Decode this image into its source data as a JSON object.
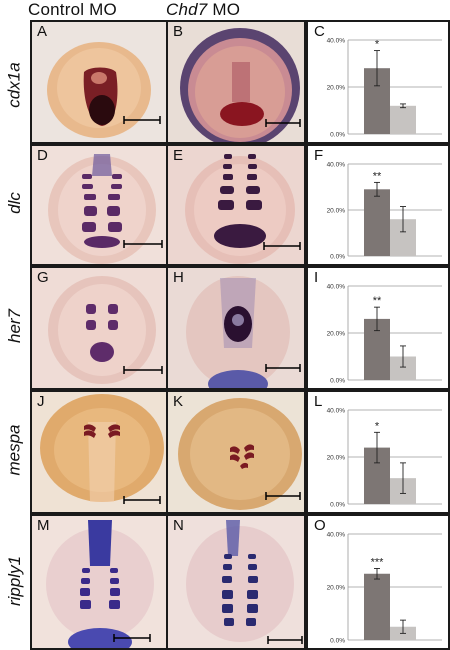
{
  "header": {
    "control_label": "Control MO",
    "chd7_label": "Chd7",
    "chd7_suffix": " MO"
  },
  "rows": [
    {
      "gene": "cdx1a",
      "panels": [
        "A",
        "B",
        "C"
      ]
    },
    {
      "gene": "dlc",
      "panels": [
        "D",
        "E",
        "F"
      ]
    },
    {
      "gene": "her7",
      "panels": [
        "G",
        "H",
        "I"
      ]
    },
    {
      "gene": "mespa",
      "panels": [
        "J",
        "K",
        "L"
      ]
    },
    {
      "gene": "ripply1",
      "panels": [
        "M",
        "N",
        "O"
      ]
    }
  ],
  "colors": {
    "dark_bar": "#7d7674",
    "light_bar": "#c6c3c1",
    "axis": "#9a9a9a",
    "border": "#1a1a1a"
  },
  "chart_data": [
    {
      "type": "bar",
      "panel": "C",
      "categories": [
        "",
        ""
      ],
      "values": [
        28,
        12
      ],
      "errors": [
        7.5,
        0.8
      ],
      "ylim": [
        0,
        40
      ],
      "yticks": [
        "0.0%",
        "20.0%",
        "40.0%"
      ],
      "significance": "*"
    },
    {
      "type": "bar",
      "panel": "F",
      "categories": [
        "",
        ""
      ],
      "values": [
        29,
        16
      ],
      "errors": [
        3,
        5.5
      ],
      "ylim": [
        0,
        40
      ],
      "yticks": [
        "0.0%",
        "20.0%",
        "40.0%"
      ],
      "significance": "**"
    },
    {
      "type": "bar",
      "panel": "I",
      "categories": [
        "",
        ""
      ],
      "values": [
        26,
        10
      ],
      "errors": [
        5,
        4.5
      ],
      "ylim": [
        0,
        40
      ],
      "yticks": [
        "0.0%",
        "20.0%",
        "40.0%"
      ],
      "significance": "**"
    },
    {
      "type": "bar",
      "panel": "L",
      "categories": [
        "",
        ""
      ],
      "values": [
        24,
        11
      ],
      "errors": [
        6.5,
        6.5
      ],
      "ylim": [
        0,
        40
      ],
      "yticks": [
        "0.0%",
        "20.0%",
        "40.0%"
      ],
      "significance": "*"
    },
    {
      "type": "bar",
      "panel": "O",
      "categories": [
        "",
        ""
      ],
      "values": [
        25,
        5
      ],
      "errors": [
        2,
        2.5
      ],
      "ylim": [
        0,
        40
      ],
      "yticks": [
        "0.0%",
        "20.0%",
        "40.0%"
      ],
      "significance": "***"
    }
  ]
}
